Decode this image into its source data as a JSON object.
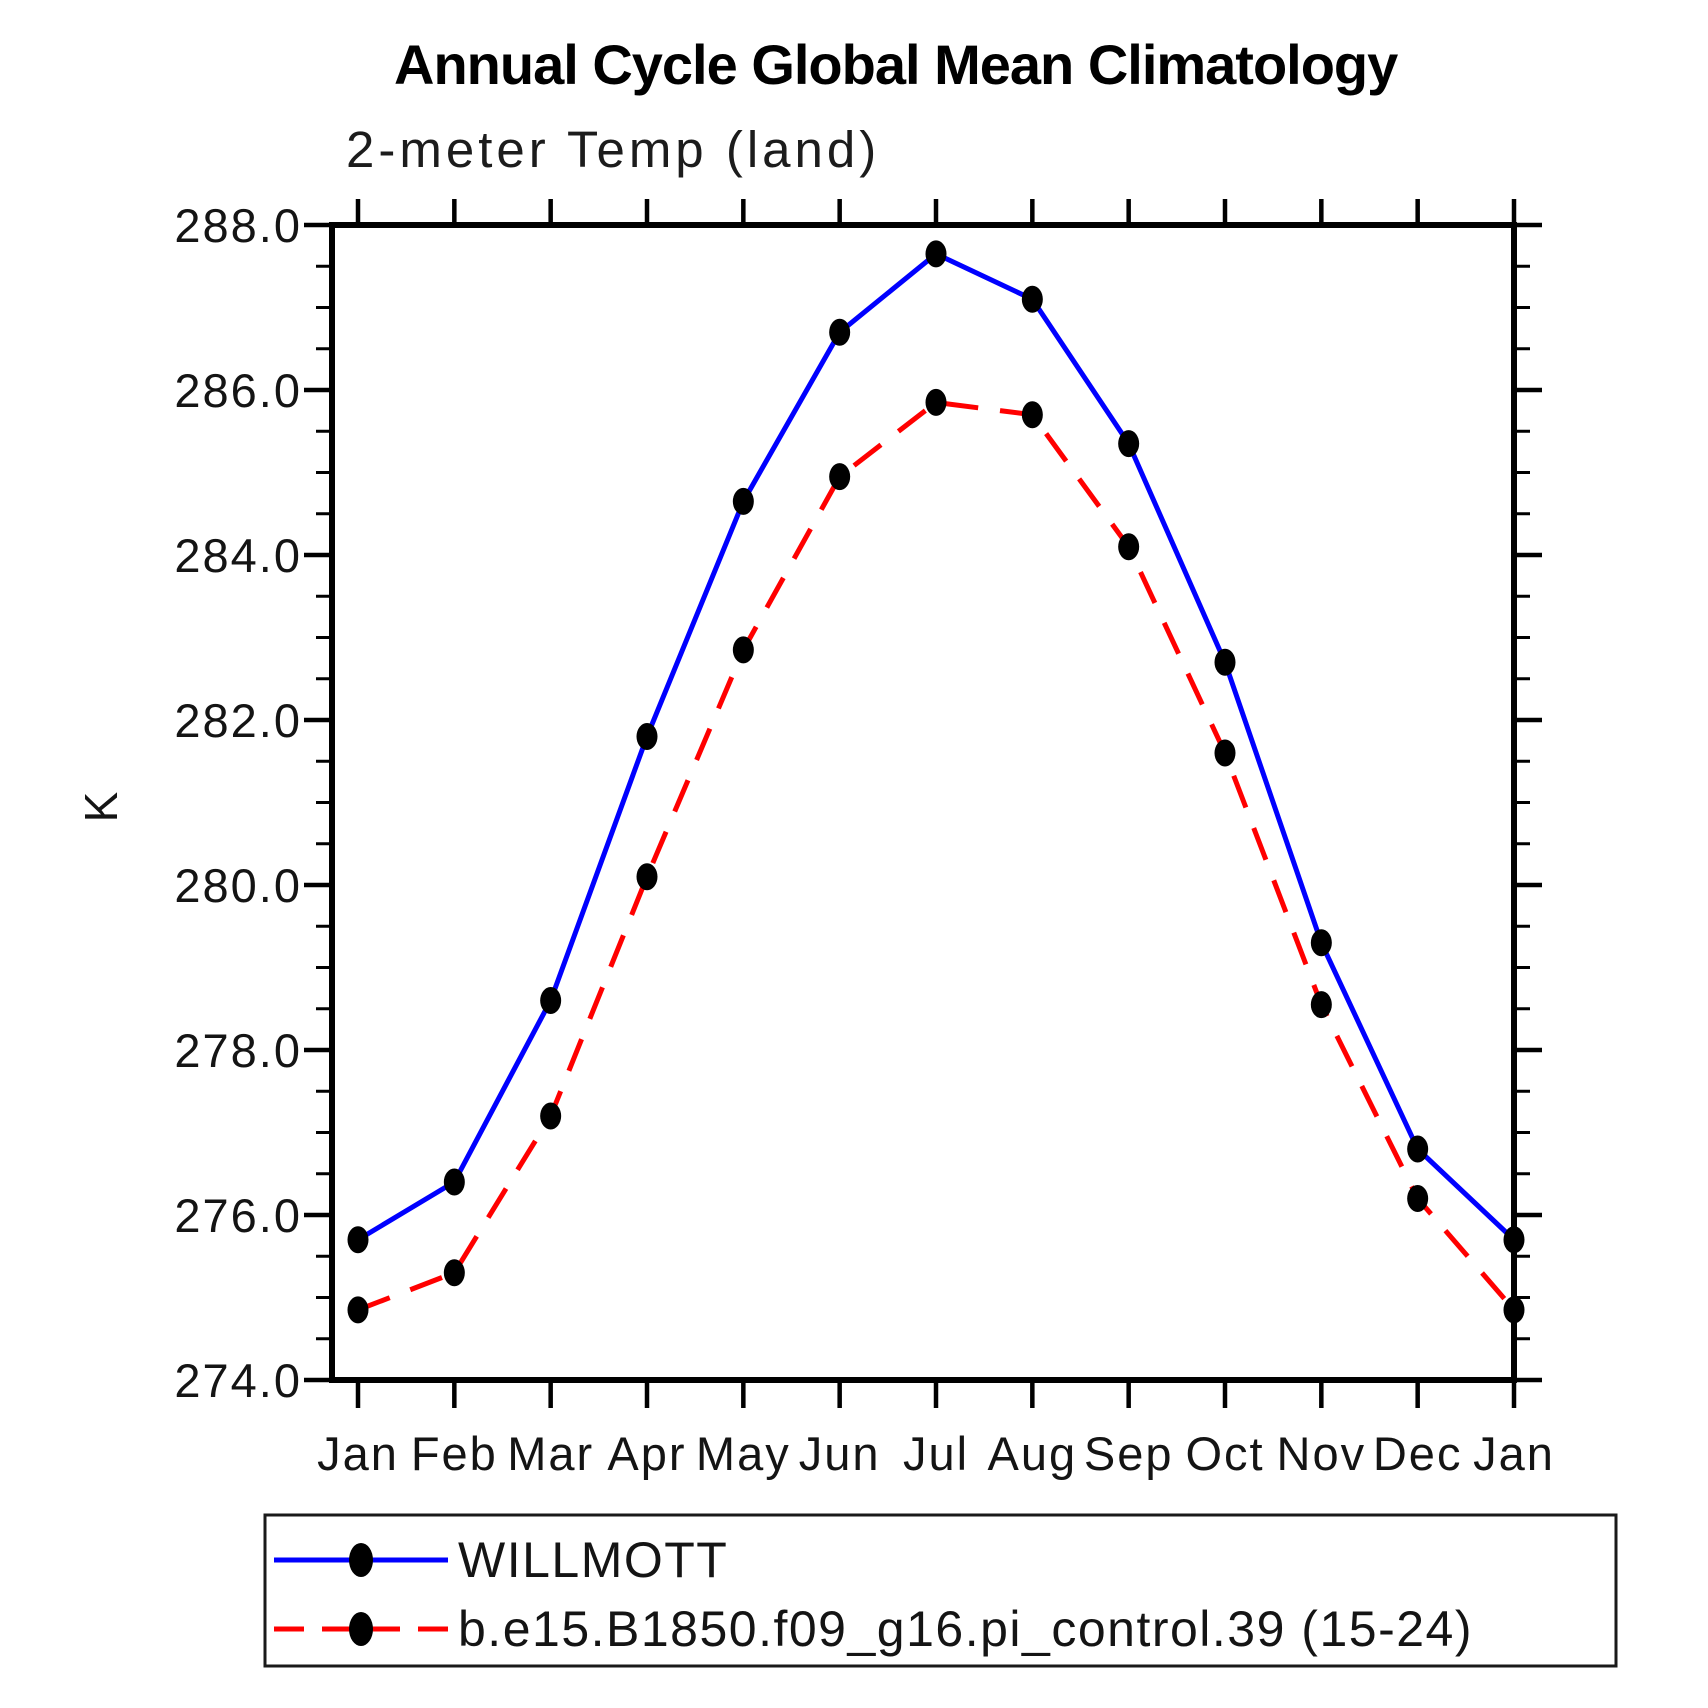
{
  "title": "Annual Cycle Global Mean Climatology",
  "subtitle": "2-meter Temp (land)",
  "chart_data": {
    "type": "line",
    "categories": [
      "Jan",
      "Feb",
      "Mar",
      "Apr",
      "May",
      "Jun",
      "Jul",
      "Aug",
      "Sep",
      "Oct",
      "Nov",
      "Dec",
      "Jan"
    ],
    "xlabel": "",
    "ylabel": "K",
    "ylim": [
      274.0,
      288.0
    ],
    "yticks": [
      274.0,
      276.0,
      278.0,
      280.0,
      282.0,
      284.0,
      286.0,
      288.0
    ],
    "ytick_step": 2.0,
    "minor_tick_step": 0.5,
    "grid": false,
    "legend_position": "bottom",
    "series": [
      {
        "name": "WILLMOTT",
        "color": "#0000ff",
        "line_style": "solid",
        "marker": "filled-black-dot",
        "values": [
          275.7,
          276.4,
          278.6,
          281.8,
          284.65,
          286.7,
          287.65,
          287.1,
          285.35,
          282.7,
          279.3,
          276.8,
          275.7
        ]
      },
      {
        "name": "b.e15.B1850.f09_g16.pi_control.39 (15-24)",
        "color": "#ff0000",
        "line_style": "dashed",
        "marker": "filled-black-dot",
        "values": [
          274.85,
          275.3,
          277.2,
          280.1,
          282.85,
          284.95,
          285.85,
          285.7,
          284.1,
          281.6,
          278.55,
          276.2,
          274.85
        ]
      }
    ]
  }
}
